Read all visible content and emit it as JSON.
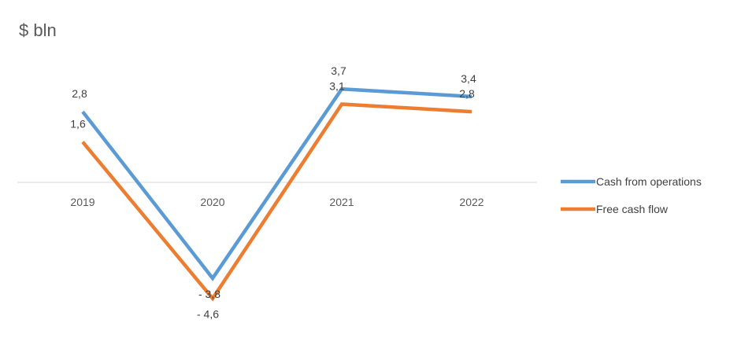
{
  "chart_data": {
    "type": "line",
    "title": "$ bln",
    "categories": [
      "2019",
      "2020",
      "2021",
      "2022"
    ],
    "series": [
      {
        "name": "Cash from operations",
        "color": "#5B9BD5",
        "values": [
          2.8,
          -3.8,
          3.7,
          3.4
        ],
        "labels": [
          "2,8",
          "- 3,8",
          "3,7",
          "3,4"
        ]
      },
      {
        "name": "Free cash flow",
        "color": "#ED7D31",
        "values": [
          1.6,
          -4.6,
          3.1,
          2.8
        ],
        "labels": [
          "1,6",
          "- 4,6",
          "3,1",
          "2,8"
        ]
      }
    ],
    "ylim": [
      -5,
      4
    ],
    "grid": false,
    "legend": "right"
  }
}
